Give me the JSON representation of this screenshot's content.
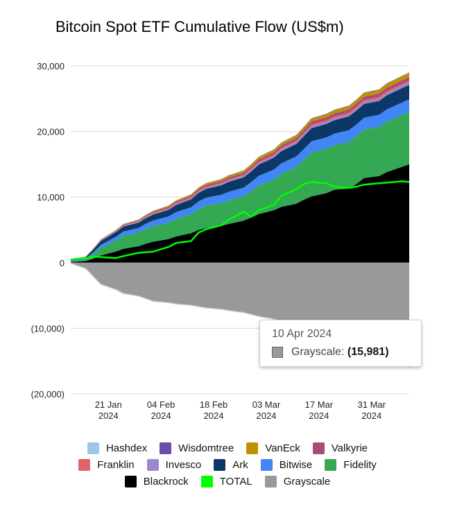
{
  "chart_data": {
    "type": "area",
    "title": "Bitcoin Spot ETF Cumulative Flow (US$m)",
    "y_tick_labels": [
      "30,000",
      "20,000",
      "10,000",
      "0",
      "(10,000)",
      "(20,000)"
    ],
    "y_tick_values": [
      30000,
      20000,
      10000,
      0,
      -10000,
      -20000
    ],
    "ylim": [
      -20000,
      30000
    ],
    "grid": true,
    "x_ticks": [
      {
        "date": "2024-01-21",
        "line1": "21 Jan",
        "line2": "2024"
      },
      {
        "date": "2024-02-04",
        "line1": "04 Feb",
        "line2": "2024"
      },
      {
        "date": "2024-02-18",
        "line1": "18 Feb",
        "line2": "2024"
      },
      {
        "date": "2024-03-03",
        "line1": "03 Mar",
        "line2": "2024"
      },
      {
        "date": "2024-03-17",
        "line1": "17 Mar",
        "line2": "2024"
      },
      {
        "date": "2024-03-31",
        "line1": "31 Mar",
        "line2": "2024"
      }
    ],
    "x": [
      "2024-01-11",
      "2024-01-15",
      "2024-01-17",
      "2024-01-19",
      "2024-01-23",
      "2024-01-25",
      "2024-01-29",
      "2024-01-31",
      "2024-02-02",
      "2024-02-06",
      "2024-02-08",
      "2024-02-12",
      "2024-02-14",
      "2024-02-16",
      "2024-02-20",
      "2024-02-22",
      "2024-02-26",
      "2024-02-28",
      "2024-03-01",
      "2024-03-05",
      "2024-03-07",
      "2024-03-11",
      "2024-03-13",
      "2024-03-15",
      "2024-03-19",
      "2024-03-21",
      "2024-03-25",
      "2024-03-27",
      "2024-03-29",
      "2024-04-02",
      "2024-04-04",
      "2024-04-08",
      "2024-04-10"
    ],
    "stack_order": [
      "Blackrock",
      "Fidelity",
      "Bitwise",
      "Ark",
      "Invesco",
      "Franklin",
      "Valkyrie",
      "VanEck",
      "Wisdomtree",
      "Hashdex"
    ],
    "series": [
      {
        "name": "Blackrock",
        "color": "#000000",
        "values": [
          100,
          250,
          600,
          1100,
          1700,
          2100,
          2500,
          2900,
          3200,
          3600,
          4000,
          4500,
          5000,
          5300,
          5600,
          5900,
          6400,
          6900,
          7400,
          8000,
          8500,
          9000,
          9600,
          10100,
          10600,
          11100,
          11300,
          12000,
          12900,
          13200,
          13800,
          14600,
          15000
        ]
      },
      {
        "name": "Fidelity",
        "color": "#34a853",
        "values": [
          100,
          200,
          700,
          1200,
          1700,
          2000,
          2100,
          2250,
          2400,
          2500,
          2700,
          2900,
          3200,
          3400,
          3500,
          3600,
          3700,
          4000,
          4400,
          4700,
          5100,
          5600,
          6100,
          6700,
          6800,
          6800,
          7100,
          7300,
          7400,
          7500,
          7700,
          7900,
          8000
        ]
      },
      {
        "name": "Bitwise",
        "color": "#4285f4",
        "values": [
          100,
          150,
          250,
          400,
          550,
          650,
          700,
          800,
          850,
          950,
          1000,
          1050,
          1150,
          1200,
          1250,
          1300,
          1350,
          1400,
          1450,
          1500,
          1550,
          1600,
          1650,
          1700,
          1700,
          1750,
          1800,
          1800,
          1800,
          1850,
          1850,
          1900,
          1900
        ]
      },
      {
        "name": "Ark",
        "color": "#0b3866",
        "values": [
          150,
          250,
          450,
          600,
          700,
          750,
          800,
          850,
          900,
          1000,
          1100,
          1200,
          1300,
          1350,
          1450,
          1500,
          1550,
          1600,
          1700,
          1800,
          1850,
          1900,
          1950,
          2000,
          2050,
          2050,
          2100,
          2100,
          2100,
          2100,
          2150,
          2200,
          2200
        ]
      },
      {
        "name": "Invesco",
        "color": "#9b86d0",
        "values": [
          20,
          40,
          60,
          80,
          100,
          110,
          120,
          130,
          140,
          150,
          160,
          170,
          180,
          190,
          200,
          210,
          220,
          230,
          240,
          250,
          260,
          270,
          280,
          290,
          300,
          300,
          310,
          310,
          320,
          320,
          330,
          330,
          340
        ]
      },
      {
        "name": "Franklin",
        "color": "#e06666",
        "values": [
          20,
          30,
          40,
          50,
          60,
          70,
          80,
          90,
          100,
          110,
          120,
          130,
          140,
          150,
          160,
          170,
          180,
          190,
          200,
          210,
          220,
          230,
          240,
          250,
          260,
          260,
          270,
          270,
          280,
          280,
          290,
          290,
          300
        ]
      },
      {
        "name": "Valkyrie",
        "color": "#a64d79",
        "values": [
          10,
          20,
          40,
          60,
          80,
          100,
          120,
          140,
          160,
          180,
          200,
          220,
          240,
          260,
          280,
          300,
          320,
          340,
          360,
          380,
          400,
          420,
          440,
          460,
          470,
          480,
          490,
          500,
          510,
          520,
          530,
          540,
          550
        ]
      },
      {
        "name": "VanEck",
        "color": "#bf9000",
        "values": [
          10,
          20,
          40,
          60,
          80,
          100,
          120,
          140,
          160,
          180,
          200,
          220,
          240,
          260,
          280,
          300,
          320,
          340,
          360,
          380,
          400,
          420,
          440,
          460,
          480,
          500,
          520,
          540,
          560,
          580,
          600,
          620,
          640
        ]
      },
      {
        "name": "Wisdomtree",
        "color": "#674ea7",
        "values": [
          5,
          5,
          10,
          10,
          15,
          15,
          20,
          20,
          20,
          25,
          25,
          25,
          30,
          30,
          30,
          35,
          35,
          35,
          40,
          40,
          40,
          45,
          45,
          45,
          50,
          50,
          50,
          55,
          55,
          55,
          60,
          60,
          60
        ]
      },
      {
        "name": "Hashdex",
        "color": "#9fc5e8",
        "values": [
          5,
          5,
          10,
          10,
          10,
          15,
          15,
          15,
          20,
          20,
          20,
          20,
          25,
          25,
          25,
          25,
          30,
          30,
          30,
          30,
          35,
          35,
          35,
          35,
          40,
          40,
          40,
          40,
          45,
          45,
          45,
          45,
          50
        ]
      },
      {
        "name": "Grayscale",
        "color": "#999999",
        "values": [
          -100,
          -900,
          -2100,
          -3300,
          -4100,
          -4700,
          -5100,
          -5500,
          -5900,
          -6100,
          -6300,
          -6500,
          -6700,
          -6900,
          -7100,
          -7300,
          -7600,
          -7900,
          -8200,
          -8600,
          -8900,
          -9300,
          -9700,
          -10100,
          -10600,
          -11100,
          -11600,
          -12200,
          -12900,
          -13600,
          -14400,
          -15200,
          -15981
        ]
      },
      {
        "name": "TOTAL",
        "color": "#00ff00",
        "type": "line",
        "values": [
          500,
          700,
          950,
          850,
          700,
          1000,
          1500,
          1600,
          1700,
          2400,
          3000,
          3300,
          4600,
          5100,
          5700,
          6500,
          7800,
          7000,
          8000,
          8800,
          10200,
          11200,
          12000,
          12300,
          12100,
          11600,
          11400,
          11600,
          11900,
          12100,
          12200,
          12400,
          12300
        ]
      }
    ],
    "tooltip": {
      "date": "10 Apr 2024",
      "series": "Grayscale",
      "label": "Grayscale",
      "value": "(15,981)",
      "color": "#999999"
    }
  },
  "legend": {
    "rows": [
      [
        {
          "name": "Hashdex",
          "color": "#9fc5e8"
        },
        {
          "name": "Wisdomtree",
          "color": "#674ea7"
        },
        {
          "name": "VanEck",
          "color": "#bf9000"
        },
        {
          "name": "Valkyrie",
          "color": "#a64d79"
        }
      ],
      [
        {
          "name": "Franklin",
          "color": "#e06666"
        },
        {
          "name": "Invesco",
          "color": "#9b86d0"
        },
        {
          "name": "Ark",
          "color": "#0b3866"
        },
        {
          "name": "Bitwise",
          "color": "#4285f4"
        },
        {
          "name": "Fidelity",
          "color": "#34a853"
        }
      ],
      [
        {
          "name": "Blackrock",
          "color": "#000000"
        },
        {
          "name": "TOTAL",
          "color": "#00ff00"
        },
        {
          "name": "Grayscale",
          "color": "#999999"
        }
      ]
    ]
  }
}
